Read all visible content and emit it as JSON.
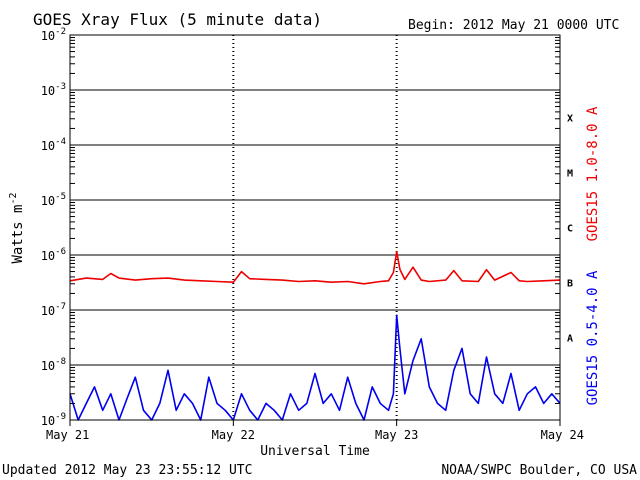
{
  "chart_data": {
    "type": "line",
    "title": "GOES Xray Flux (5 minute data)",
    "begin_text": "Begin:  2012 May 21 0000 UTC",
    "xlabel": "Universal Time",
    "ylabel": "Watts m",
    "ylabel_exponent": "-2",
    "yscale": "log",
    "ylim": [
      1e-09,
      0.01
    ],
    "xlim": [
      0,
      3
    ],
    "x_tick_labels": [
      "May 21",
      "May 22",
      "May 23",
      "May 24"
    ],
    "y_tick_exponents": [
      "-9",
      "-8",
      "-7",
      "-6",
      "-5",
      "-4",
      "-3",
      "-2"
    ],
    "flare_classes": [
      {
        "label": "X",
        "value": 0.0001
      },
      {
        "label": "M",
        "value": 1e-05
      },
      {
        "label": "C",
        "value": 1e-06
      },
      {
        "label": "B",
        "value": 1e-07
      },
      {
        "label": "A",
        "value": 1e-08
      }
    ],
    "grid": true,
    "series": [
      {
        "name": "GOES15 1.0-8.0 A",
        "color": "#ee0000",
        "x": [
          0.0,
          0.1,
          0.2,
          0.25,
          0.3,
          0.4,
          0.5,
          0.6,
          0.7,
          0.8,
          0.9,
          1.0,
          1.05,
          1.1,
          1.2,
          1.3,
          1.4,
          1.5,
          1.6,
          1.7,
          1.8,
          1.9,
          1.95,
          1.98,
          2.0,
          2.02,
          2.05,
          2.1,
          2.15,
          2.2,
          2.3,
          2.35,
          2.4,
          2.5,
          2.55,
          2.6,
          2.7,
          2.75,
          2.8,
          2.9,
          3.0
        ],
        "y": [
          3.4e-07,
          3.8e-07,
          3.6e-07,
          4.6e-07,
          3.8e-07,
          3.5e-07,
          3.7e-07,
          3.8e-07,
          3.5e-07,
          3.4e-07,
          3.3e-07,
          3.2e-07,
          5e-07,
          3.7e-07,
          3.6e-07,
          3.5e-07,
          3.3e-07,
          3.4e-07,
          3.2e-07,
          3.3e-07,
          3e-07,
          3.3e-07,
          3.4e-07,
          4.8e-07,
          1.15e-06,
          5.5e-07,
          3.6e-07,
          6e-07,
          3.5e-07,
          3.3e-07,
          3.5e-07,
          5.2e-07,
          3.4e-07,
          3.3e-07,
          5.4e-07,
          3.5e-07,
          4.8e-07,
          3.4e-07,
          3.3e-07,
          3.4e-07,
          3.5e-07
        ]
      },
      {
        "name": "GOES15 0.5-4.0 A",
        "color": "#0000ee",
        "x": [
          0.0,
          0.05,
          0.1,
          0.15,
          0.2,
          0.25,
          0.3,
          0.35,
          0.4,
          0.45,
          0.5,
          0.55,
          0.6,
          0.65,
          0.7,
          0.75,
          0.8,
          0.85,
          0.9,
          0.95,
          1.0,
          1.05,
          1.1,
          1.15,
          1.2,
          1.25,
          1.3,
          1.35,
          1.4,
          1.45,
          1.5,
          1.55,
          1.6,
          1.65,
          1.7,
          1.75,
          1.8,
          1.85,
          1.9,
          1.95,
          1.98,
          2.0,
          2.02,
          2.05,
          2.1,
          2.15,
          2.2,
          2.25,
          2.3,
          2.35,
          2.4,
          2.45,
          2.5,
          2.55,
          2.6,
          2.65,
          2.7,
          2.75,
          2.8,
          2.85,
          2.9,
          2.95,
          3.0
        ],
        "y": [
          3e-09,
          1e-09,
          2e-09,
          4e-09,
          1.5e-09,
          3e-09,
          1e-09,
          2.5e-09,
          6e-09,
          1.5e-09,
          1e-09,
          2e-09,
          8e-09,
          1.5e-09,
          3e-09,
          2e-09,
          1e-09,
          6e-09,
          2e-09,
          1.5e-09,
          1e-09,
          3e-09,
          1.5e-09,
          1e-09,
          2e-09,
          1.5e-09,
          1e-09,
          3e-09,
          1.5e-09,
          2e-09,
          7e-09,
          2e-09,
          3e-09,
          1.5e-09,
          6e-09,
          2e-09,
          1e-09,
          4e-09,
          2e-09,
          1.5e-09,
          3e-09,
          8e-08,
          2e-08,
          3e-09,
          1.2e-08,
          3e-08,
          4e-09,
          2e-09,
          1.5e-09,
          8e-09,
          2e-08,
          3e-09,
          2e-09,
          1.4e-08,
          3e-09,
          2e-09,
          7e-09,
          1.5e-09,
          3e-09,
          4e-09,
          2e-09,
          3e-09,
          2e-09
        ]
      }
    ],
    "updated_text": "Updated 2012 May 23 23:55:12 UTC",
    "credit_text": "NOAA/SWPC Boulder, CO USA"
  }
}
